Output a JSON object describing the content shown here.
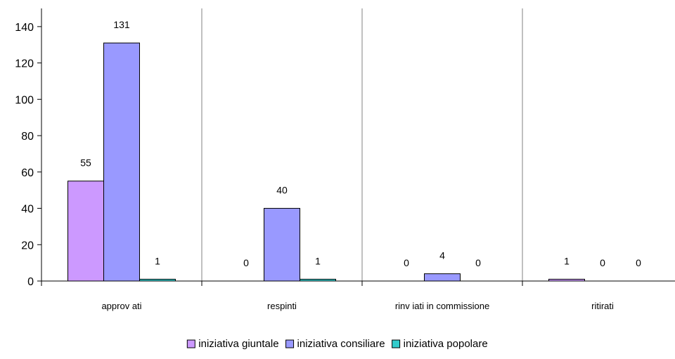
{
  "chart_data": {
    "type": "bar",
    "categories": [
      "approv ati",
      "respinti",
      "rinv iati in commissione",
      "ritirati"
    ],
    "series": [
      {
        "name": "iniziativa giuntale",
        "values": [
          55,
          0,
          0,
          1
        ],
        "color": "#cc99ff"
      },
      {
        "name": "iniziativa consiliare",
        "values": [
          131,
          40,
          4,
          0
        ],
        "color": "#9999ff"
      },
      {
        "name": "iniziativa popolare",
        "values": [
          1,
          1,
          0,
          0
        ],
        "color": "#33cccc"
      }
    ],
    "data_labels": [
      [
        "55",
        "0",
        "0",
        "1"
      ],
      [
        "131",
        "40",
        "4",
        "0"
      ],
      [
        "1",
        "1",
        "0",
        "0"
      ]
    ],
    "y_ticks": [
      0,
      20,
      40,
      60,
      80,
      100,
      120,
      140
    ],
    "ylim": [
      0,
      150
    ],
    "grid": "vertical category separators",
    "legend_position": "bottom"
  }
}
